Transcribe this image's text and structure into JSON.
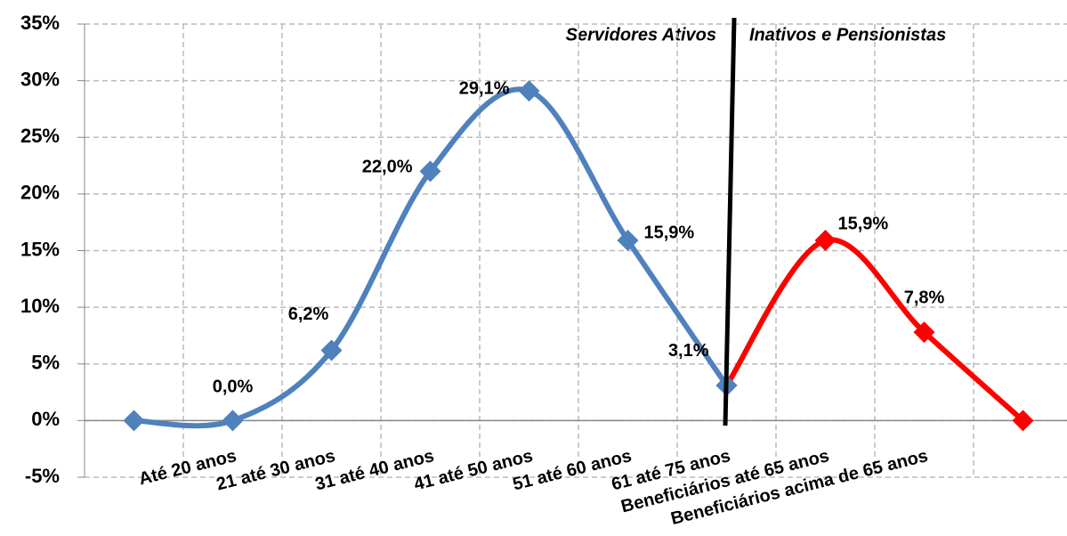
{
  "chart_data": {
    "type": "line",
    "categories": [
      null,
      "Até 20 anos",
      "21 até 30 anos",
      "31 até 40 anos",
      "41 até 50 anos",
      "51 até 60 anos",
      "61 até 75 anos",
      "Beneficiários até 65 anos",
      "Beneficiários acima de 65 anos",
      null
    ],
    "series": [
      {
        "name": "Servidores Ativos",
        "color": "#4f81bd",
        "values": [
          0,
          0.0,
          6.2,
          22.0,
          29.1,
          15.9,
          3.1,
          null,
          null,
          null
        ],
        "value_labels": [
          null,
          "0,0%",
          "6,2%",
          "22,0%",
          "29,1%",
          "15,9%",
          "3,1%",
          null,
          null,
          null
        ]
      },
      {
        "name": "Inativos e Pensionistas",
        "color": "#ff0000",
        "values": [
          null,
          null,
          null,
          null,
          null,
          null,
          3.1,
          15.9,
          7.8,
          0
        ],
        "value_labels": [
          null,
          null,
          null,
          null,
          null,
          null,
          null,
          "15,9%",
          "7,8%",
          null
        ]
      }
    ],
    "ylim": [
      -5,
      35
    ],
    "yticks": [
      {
        "value": -5,
        "label": "-5%"
      },
      {
        "value": 0,
        "label": "0%"
      },
      {
        "value": 5,
        "label": "5%"
      },
      {
        "value": 10,
        "label": "10%"
      },
      {
        "value": 15,
        "label": "15%"
      },
      {
        "value": 20,
        "label": "20%"
      },
      {
        "value": 25,
        "label": "25%"
      },
      {
        "value": 30,
        "label": "30%"
      },
      {
        "value": 35,
        "label": "35%"
      }
    ],
    "grid": true,
    "annotations": [
      "Servidores Ativos",
      "Inativos e Pensionistas"
    ]
  }
}
